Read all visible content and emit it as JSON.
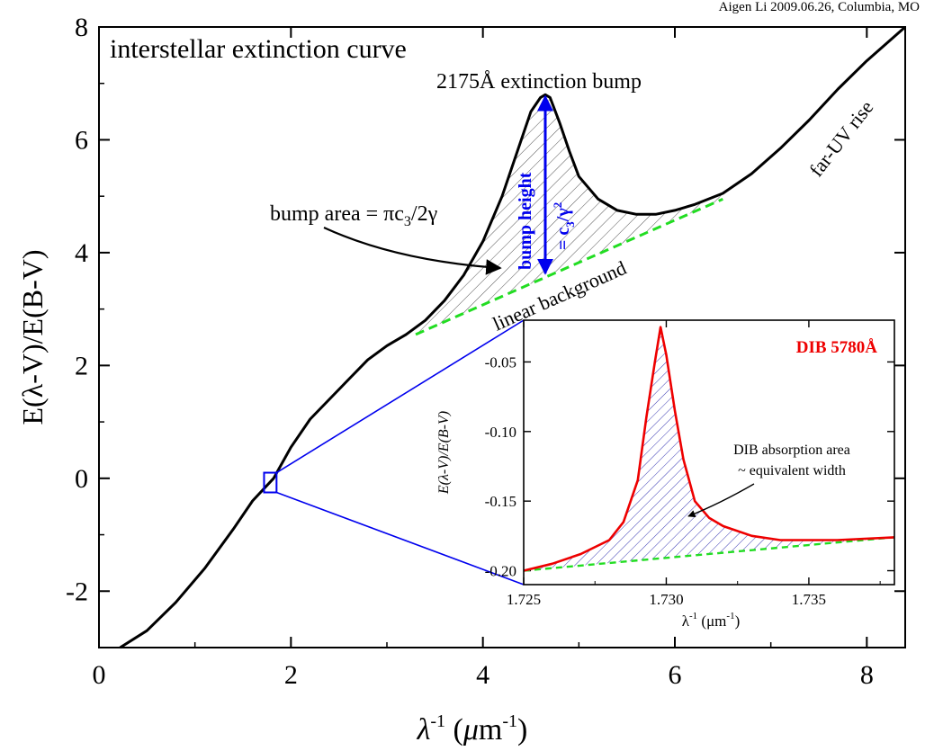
{
  "credit": "Aigen Li 2009.06.26, Columbia, MO",
  "chart_data": [
    {
      "type": "line",
      "title": "interstellar extinction curve",
      "xlabel": "λ⁻¹ (μm⁻¹)",
      "ylabel": "E(λ-V)/E(B-V)",
      "xlim": [
        0,
        8.4
      ],
      "ylim": [
        -3,
        8
      ],
      "xticks": [
        0,
        2,
        4,
        6,
        8
      ],
      "yticks": [
        -2,
        0,
        2,
        4,
        6,
        8
      ],
      "ytick_labels": [
        "-2",
        "0",
        "2",
        "4",
        "6",
        "8"
      ],
      "grid": false,
      "series": [
        {
          "kind": "extinction-curve",
          "color": "#000000",
          "x": [
            0.22,
            0.5,
            0.8,
            1.1,
            1.4,
            1.6,
            1.82,
            2.0,
            2.2,
            2.4,
            2.6,
            2.8,
            3.0,
            3.2,
            3.4,
            3.6,
            3.8,
            4.0,
            4.2,
            4.4,
            4.5,
            4.6,
            4.65,
            4.7,
            4.8,
            4.9,
            5.0,
            5.2,
            5.4,
            5.6,
            5.8,
            6.0,
            6.2,
            6.5,
            6.8,
            7.1,
            7.4,
            7.7,
            8.0,
            8.4
          ],
          "y": [
            -3.0,
            -2.7,
            -2.2,
            -1.6,
            -0.9,
            -0.4,
            0.0,
            0.55,
            1.05,
            1.4,
            1.75,
            2.1,
            2.35,
            2.55,
            2.8,
            3.15,
            3.6,
            4.2,
            5.0,
            6.0,
            6.5,
            6.75,
            6.8,
            6.75,
            6.3,
            5.8,
            5.35,
            4.95,
            4.75,
            4.68,
            4.68,
            4.75,
            4.85,
            5.05,
            5.4,
            5.85,
            6.35,
            6.9,
            7.4,
            8.0
          ]
        },
        {
          "kind": "linear-background",
          "color": "#22dd22",
          "x": [
            3.3,
            6.5
          ],
          "y": [
            2.55,
            4.95
          ]
        }
      ],
      "bump_range": [
        3.3,
        6.5
      ],
      "zoom_box": {
        "x": [
          1.72,
          1.85
        ],
        "y": [
          -0.25,
          0.1
        ]
      },
      "annotations": {
        "bump_label": "2175Å extinction bump",
        "bump_area": "bump area = πc",
        "bump_area_sub": "3",
        "bump_area_tail": "/2γ",
        "bump_height": "bump height",
        "bump_height_eq": "= c",
        "bump_height_eq_sub": "3",
        "bump_height_eq_tail": "/γ",
        "bump_height_eq_sup": "2",
        "linear_background": "linear background",
        "far_uv": "far-UV rise"
      },
      "bump_height_arrow": {
        "x": 4.65,
        "y": [
          3.6,
          6.8
        ]
      },
      "colors": {
        "curve": "#000000",
        "background": "#22dd22",
        "arrow": "#0000ee",
        "zoom": "#0000ee"
      }
    },
    {
      "type": "line",
      "title": "DIB 5780Å",
      "xlabel": "λ⁻¹ (μm⁻¹)",
      "ylabel": "E(λ-V)/E(B-V)",
      "xlim": [
        1.725,
        1.738
      ],
      "ylim": [
        -0.21,
        -0.02
      ],
      "xticks": [
        1.725,
        1.73,
        1.735
      ],
      "xtick_labels": [
        "1.725",
        "1.730",
        "1.735"
      ],
      "yticks": [
        -0.2,
        -0.15,
        -0.1,
        -0.05
      ],
      "ytick_labels": [
        "-0.20",
        "-0.15",
        "-0.10",
        "-0.05"
      ],
      "series": [
        {
          "kind": "dib-profile",
          "color": "#ee0000",
          "x": [
            1.725,
            1.726,
            1.727,
            1.728,
            1.7285,
            1.729,
            1.7293,
            1.7296,
            1.7298,
            1.73,
            1.7303,
            1.7306,
            1.731,
            1.7315,
            1.732,
            1.733,
            1.734,
            1.736,
            1.738
          ],
          "y": [
            -0.2,
            -0.195,
            -0.188,
            -0.178,
            -0.165,
            -0.135,
            -0.09,
            -0.05,
            -0.025,
            -0.045,
            -0.085,
            -0.12,
            -0.15,
            -0.162,
            -0.168,
            -0.175,
            -0.178,
            -0.178,
            -0.176
          ]
        },
        {
          "kind": "dib-background",
          "color": "#22dd22",
          "x": [
            1.725,
            1.738
          ],
          "y": [
            -0.2,
            -0.176
          ]
        }
      ],
      "annotations": {
        "area_line1": "DIB absorption area",
        "area_line2": "~ equivalent width"
      },
      "colors": {
        "profile": "#ee0000",
        "background": "#22dd22",
        "hatch": "#0000aa"
      }
    }
  ]
}
